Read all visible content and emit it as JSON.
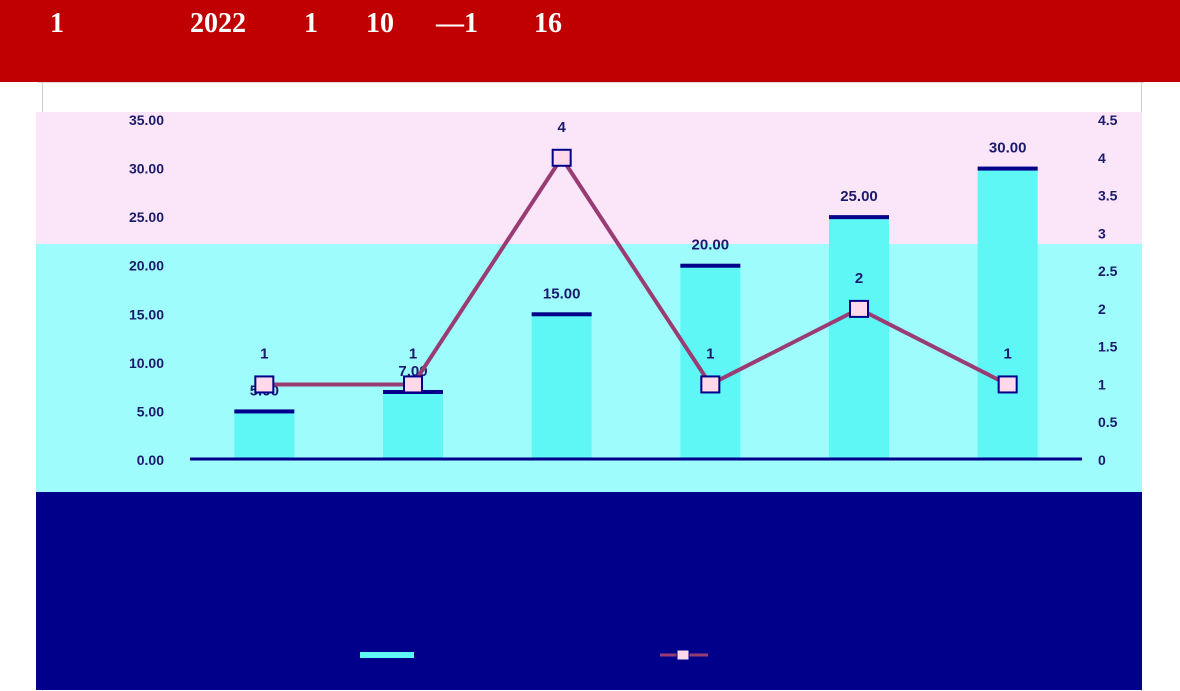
{
  "header": {
    "parts": [
      "1",
      "2022",
      "1",
      "10",
      "—1",
      "16"
    ]
  },
  "colors": {
    "header_bg": "#c00000",
    "band_pink": "#fbe5f9",
    "band_cyan": "#9ffcfc",
    "band_navy": "#00008b",
    "bar_fill": "#5ff6f6",
    "bar_cap": "#00008b",
    "line": "#9a3c74",
    "marker": "#ffd9ea",
    "text_light": "#ffffff",
    "text_dark": "#1a1a6e"
  },
  "chart_data": {
    "type": "bar",
    "categories": [
      "",
      "",
      "",
      "",
      "",
      ""
    ],
    "series": [
      {
        "kind": "bar",
        "axis": "left",
        "values": [
          5.0,
          7.0,
          15.0,
          20.0,
          25.0,
          30.0
        ],
        "labels": [
          "5.00",
          "7.00",
          "15.00",
          "20.00",
          "25.00",
          "30.00"
        ]
      },
      {
        "kind": "line",
        "axis": "right",
        "values": [
          1,
          1,
          4,
          1,
          2,
          1
        ],
        "labels": [
          "1",
          "1",
          "4",
          "1",
          "2",
          "1"
        ]
      }
    ],
    "left_axis": {
      "ticks": [
        0,
        5,
        10,
        15,
        20,
        25,
        30,
        35
      ],
      "tick_labels": [
        "0.00",
        "5.00",
        "10.00",
        "15.00",
        "20.00",
        "25.00",
        "30.00",
        "35.00"
      ],
      "ylim": [
        0,
        35
      ]
    },
    "right_axis": {
      "ticks": [
        0,
        0.5,
        1,
        1.5,
        2,
        2.5,
        3,
        3.5,
        4,
        4.5
      ],
      "tick_labels": [
        "0",
        "0.5",
        "1",
        "1.5",
        "2",
        "2.5",
        "3",
        "3.5",
        "4",
        "4.5"
      ],
      "ylim": [
        0,
        4.5
      ]
    },
    "legend": {
      "placement": "bottom",
      "entries": [
        "",
        ""
      ]
    },
    "grid": false
  }
}
